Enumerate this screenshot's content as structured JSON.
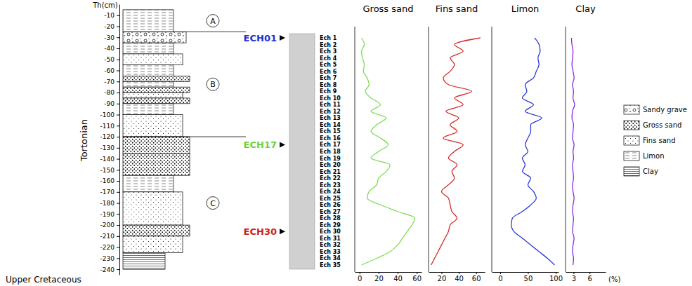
{
  "chart_data": [
    {
      "type": "strat_column",
      "y_label": "Th(cm)",
      "stage": "Tortonian",
      "base": "Upper Cretaceous",
      "ylim": [
        0,
        -245
      ],
      "yticks": [
        -10,
        -20,
        -30,
        -40,
        -50,
        -60,
        -70,
        -80,
        -90,
        -100,
        -110,
        -120,
        -130,
        -140,
        -150,
        -160,
        -170,
        -180,
        -190,
        -200,
        -210,
        -220,
        -230,
        -240
      ],
      "legend": "right",
      "lithologies": [
        "Sandy grave",
        "Gross sand",
        "Fins sand",
        "Limon",
        "Clay"
      ],
      "layers": [
        {
          "top": -5,
          "bottom": -25,
          "lithology": "Limon"
        },
        {
          "top": -25,
          "bottom": -35,
          "lithology": "Sandy grave"
        },
        {
          "top": -35,
          "bottom": -45,
          "lithology": "Limon"
        },
        {
          "top": -45,
          "bottom": -55,
          "lithology": "Fins sand"
        },
        {
          "top": -55,
          "bottom": -65,
          "lithology": "Limon"
        },
        {
          "top": -65,
          "bottom": -70,
          "lithology": "Gross sand"
        },
        {
          "top": -70,
          "bottom": -75,
          "lithology": "Limon"
        },
        {
          "top": -75,
          "bottom": -80,
          "lithology": "Gross sand"
        },
        {
          "top": -80,
          "bottom": -85,
          "lithology": "Fins sand"
        },
        {
          "top": -85,
          "bottom": -90,
          "lithology": "Gross sand"
        },
        {
          "top": -90,
          "bottom": -100,
          "lithology": "Limon"
        },
        {
          "top": -100,
          "bottom": -120,
          "lithology": "Fins sand"
        },
        {
          "top": -120,
          "bottom": -135,
          "lithology": "Gross sand"
        },
        {
          "top": -135,
          "bottom": -155,
          "lithology": "Gross sand"
        },
        {
          "top": -155,
          "bottom": -170,
          "lithology": "Limon"
        },
        {
          "top": -170,
          "bottom": -200,
          "lithology": "Fins sand"
        },
        {
          "top": -200,
          "bottom": -210,
          "lithology": "Gross sand"
        },
        {
          "top": -210,
          "bottom": -225,
          "lithology": "Fins sand"
        },
        {
          "top": -225,
          "bottom": -240,
          "lithology": "Clay"
        }
      ],
      "zones": [
        {
          "label": "A",
          "top": -5,
          "bottom": -25
        },
        {
          "label": "B",
          "top": -25,
          "bottom": -120
        },
        {
          "label": "C",
          "top": -120,
          "bottom": -240
        }
      ]
    },
    {
      "type": "line",
      "categories": [
        "Ech 1",
        "Ech 2",
        "Ech 3",
        "Ech 4",
        "Ech 5",
        "Ech 6",
        "Ech 7",
        "Ech 8",
        "Ech 9",
        "Ech 10",
        "Ech 11",
        "Ech 12",
        "Ech 13",
        "Ech 14",
        "Ech 15",
        "Ech 16",
        "Ech 17",
        "Ech 18",
        "Ech 19",
        "Ech 20",
        "Ech 21",
        "Ech 22",
        "Ech 23",
        "Ech 24",
        "Ech 25",
        "Ech 26",
        "Ech 27",
        "Ech 28",
        "Ech 29",
        "Ech 30",
        "Ech 31",
        "Ech 32",
        "Ech 33",
        "Ech 34",
        "Ech 35"
      ],
      "markers": [
        {
          "label": "ECH01",
          "sample": "Ech 1",
          "color": "#1f2fd6"
        },
        {
          "label": "ECH17",
          "sample": "Ech 17",
          "color": "#6fd23a"
        },
        {
          "label": "ECH30",
          "sample": "Ech 30",
          "color": "#d01c1c"
        }
      ],
      "series": [
        {
          "name": "Gross sand",
          "color": "#7fdc52",
          "xlim": [
            -5,
            65
          ],
          "xticks": [
            0,
            20,
            40,
            60
          ],
          "values": [
            2,
            5,
            2,
            3,
            5,
            4,
            8,
            10,
            6,
            12,
            22,
            12,
            28,
            18,
            12,
            22,
            30,
            20,
            12,
            32,
            28,
            20,
            18,
            10,
            8,
            22,
            40,
            58,
            55,
            50,
            45,
            40,
            32,
            18,
            2
          ]
        },
        {
          "name": "Fins sand",
          "color": "#d42a2a",
          "xlim": [
            5,
            70
          ],
          "xticks": [
            20,
            40,
            60
          ],
          "values": [
            65,
            35,
            45,
            30,
            35,
            30,
            22,
            28,
            55,
            35,
            45,
            25,
            40,
            30,
            38,
            22,
            45,
            35,
            28,
            38,
            32,
            35,
            28,
            20,
            28,
            30,
            32,
            38,
            30,
            28,
            24,
            20,
            16,
            12,
            8
          ]
        },
        {
          "name": "Limon",
          "color": "#2a3ad4",
          "xlim": [
            -15,
            105
          ],
          "xticks": [
            0,
            50,
            100
          ],
          "values": [
            62,
            70,
            72,
            68,
            70,
            65,
            60,
            45,
            48,
            40,
            60,
            45,
            75,
            55,
            55,
            50,
            45,
            50,
            40,
            45,
            40,
            55,
            50,
            60,
            65,
            55,
            40,
            22,
            20,
            25,
            40,
            55,
            70,
            85,
            98
          ]
        },
        {
          "name": "Clay",
          "color": "#8a2be2",
          "xlim": [
            1.5,
            9
          ],
          "xticks": [
            3,
            6
          ],
          "x_label": "(%)",
          "values": [
            2.6,
            2.7,
            2.9,
            2.8,
            2.7,
            2.9,
            3.1,
            2.8,
            3.0,
            2.9,
            3.2,
            2.8,
            2.7,
            3.0,
            2.9,
            2.8,
            3.1,
            2.9,
            3.0,
            2.8,
            2.9,
            3.0,
            2.8,
            2.9,
            3.1,
            2.9,
            2.8,
            3.0,
            2.9,
            2.8,
            3.1,
            2.9,
            2.8,
            3.0,
            2.9
          ]
        }
      ]
    }
  ]
}
